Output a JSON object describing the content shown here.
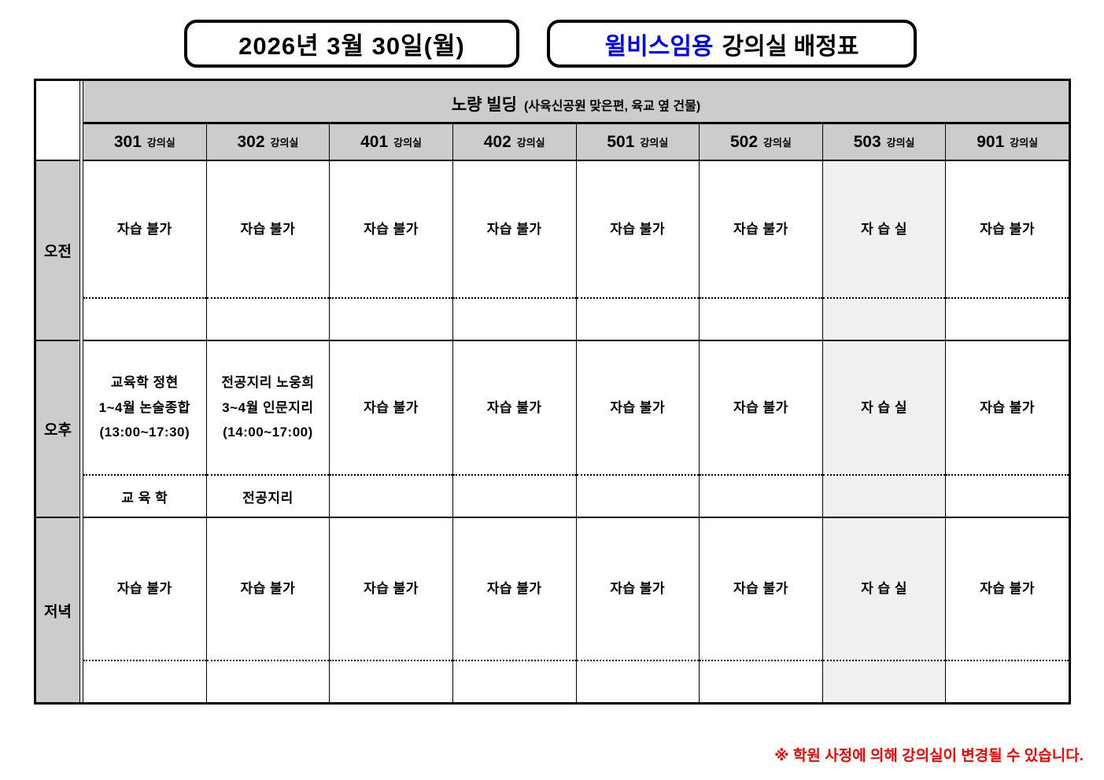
{
  "header": {
    "date": "2026년 3월 30일(월)",
    "title_brand": "윌비스임용",
    "title_rest": "강의실 배정표"
  },
  "building": {
    "name": "노량 빌딩",
    "note": "(사육신공원 맞은편, 육교 옆 건물)"
  },
  "columns": [
    {
      "number": "301",
      "label": "강의실"
    },
    {
      "number": "302",
      "label": "강의실"
    },
    {
      "number": "401",
      "label": "강의실"
    },
    {
      "number": "402",
      "label": "강의실"
    },
    {
      "number": "501",
      "label": "강의실"
    },
    {
      "number": "502",
      "label": "강의실"
    },
    {
      "number": "503",
      "label": "강의실"
    },
    {
      "number": "901",
      "label": "강의실"
    }
  ],
  "rows": [
    {
      "label": "오전",
      "cells": [
        {
          "main": "자습 불가",
          "sub": ""
        },
        {
          "main": "자습 불가",
          "sub": ""
        },
        {
          "main": "자습 불가",
          "sub": ""
        },
        {
          "main": "자습 불가",
          "sub": ""
        },
        {
          "main": "자습 불가",
          "sub": ""
        },
        {
          "main": "자습 불가",
          "sub": ""
        },
        {
          "main": "자 습 실",
          "sub": ""
        },
        {
          "main": "자습 불가",
          "sub": ""
        }
      ]
    },
    {
      "label": "오후",
      "cells": [
        {
          "main": "교육학 정현\n1~4월 논술종합\n(13:00~17:30)",
          "sub": "교 육 학"
        },
        {
          "main": "전공지리 노웅희\n3~4월 인문지리\n(14:00~17:00)",
          "sub": "전공지리"
        },
        {
          "main": "자습 불가",
          "sub": ""
        },
        {
          "main": "자습 불가",
          "sub": ""
        },
        {
          "main": "자습 불가",
          "sub": ""
        },
        {
          "main": "자습 불가",
          "sub": ""
        },
        {
          "main": "자 습 실",
          "sub": ""
        },
        {
          "main": "자습 불가",
          "sub": ""
        }
      ]
    },
    {
      "label": "저녁",
      "cells": [
        {
          "main": "자습 불가",
          "sub": ""
        },
        {
          "main": "자습 불가",
          "sub": ""
        },
        {
          "main": "자습 불가",
          "sub": ""
        },
        {
          "main": "자습 불가",
          "sub": ""
        },
        {
          "main": "자습 불가",
          "sub": ""
        },
        {
          "main": "자습 불가",
          "sub": ""
        },
        {
          "main": "자 습 실",
          "sub": ""
        },
        {
          "main": "자습 불가",
          "sub": ""
        }
      ]
    }
  ],
  "footnote": "※ 학원 사정에 의해 강의실이 변경될 수 있습니다.",
  "colors": {
    "brand_blue": "#0000ff",
    "notice_red": "#ff0000",
    "header_gray": "#cccccc",
    "selfstudy_gray": "#f0f0f0"
  }
}
